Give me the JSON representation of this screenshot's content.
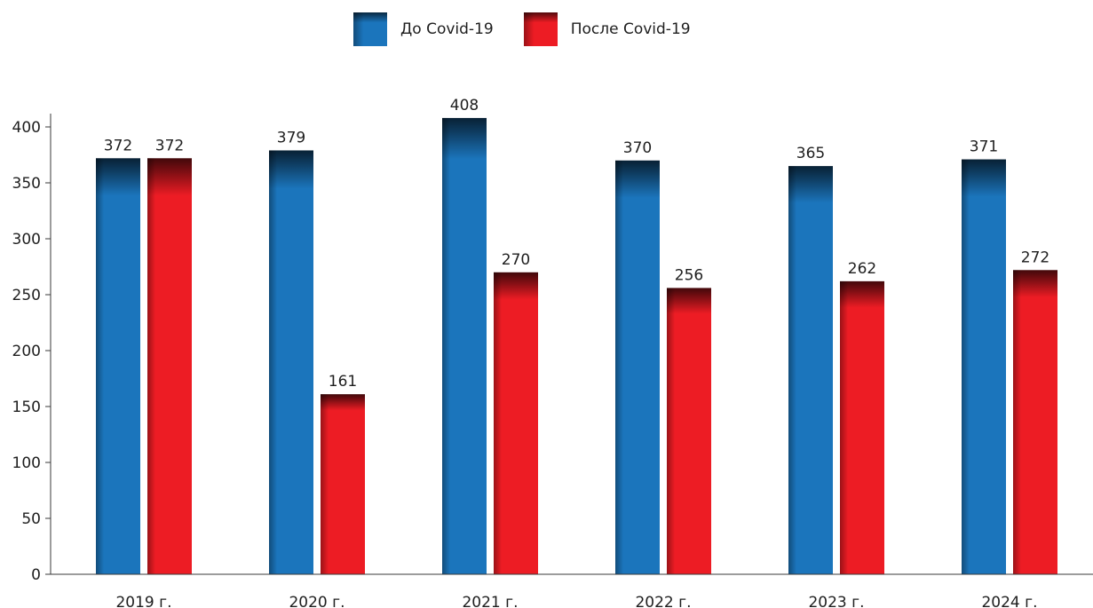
{
  "legend": {
    "items": [
      {
        "label": "До Covid-19",
        "color": "#1b75bc"
      },
      {
        "label": "После Covid-19",
        "color": "#ed1c24"
      }
    ]
  },
  "chart_data": {
    "type": "bar",
    "title": "",
    "xlabel": "",
    "ylabel": "",
    "categories": [
      "2019 г.",
      "2020 г.",
      "2021 г.",
      "2022 г.",
      "2023 г.",
      "2024 г."
    ],
    "series": [
      {
        "name": "До Covid-19",
        "color": "#1b75bc",
        "values": [
          372,
          379,
          408,
          370,
          365,
          371
        ]
      },
      {
        "name": "После Covid-19",
        "color": "#ed1c24",
        "values": [
          372,
          161,
          270,
          256,
          262,
          272
        ]
      }
    ],
    "ylim": [
      0,
      400
    ],
    "yticks": [
      0,
      50,
      100,
      150,
      200,
      250,
      300,
      350,
      400
    ],
    "data_labels": true,
    "grid": false,
    "legend_position": "top-center"
  }
}
